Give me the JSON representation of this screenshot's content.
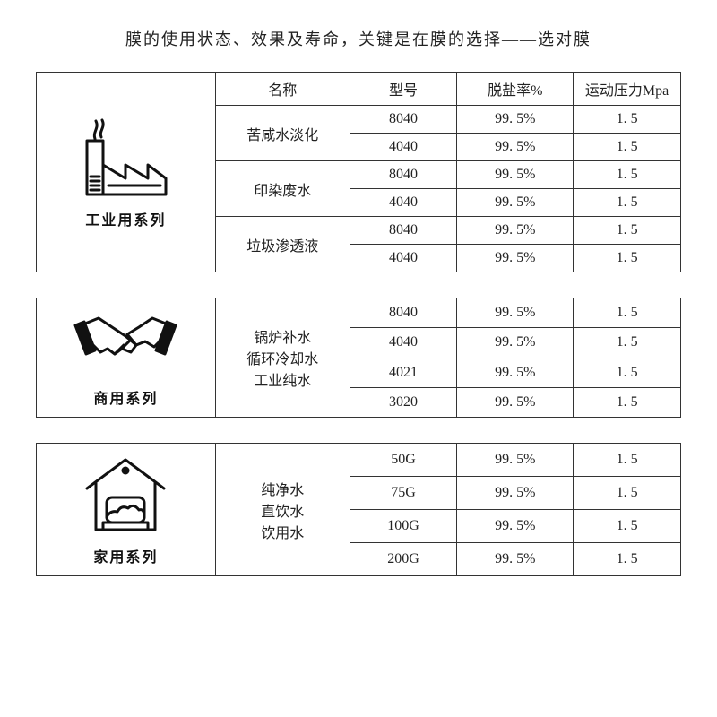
{
  "title": "膜的使用状态、效果及寿命，关键是在膜的选择——选对膜",
  "headers": {
    "name": "名称",
    "model": "型号",
    "rate": "脱盐率%",
    "pressure": "运动压力Mpa"
  },
  "colors": {
    "background": "#ffffff",
    "border": "#333333",
    "text": "#222222",
    "icon_stroke": "#111111"
  },
  "sections": [
    {
      "series_label": "工业用系列",
      "icon": "factory",
      "groups": [
        {
          "name": "苦咸水淡化",
          "rows": [
            {
              "model": "8040",
              "rate": "99. 5%",
              "pressure": "1. 5"
            },
            {
              "model": "4040",
              "rate": "99. 5%",
              "pressure": "1. 5"
            }
          ]
        },
        {
          "name": "印染废水",
          "rows": [
            {
              "model": "8040",
              "rate": "99. 5%",
              "pressure": "1. 5"
            },
            {
              "model": "4040",
              "rate": "99. 5%",
              "pressure": "1. 5"
            }
          ]
        },
        {
          "name": "垃圾渗透液",
          "rows": [
            {
              "model": "8040",
              "rate": "99. 5%",
              "pressure": "1. 5"
            },
            {
              "model": "4040",
              "rate": "99. 5%",
              "pressure": "1. 5"
            }
          ]
        }
      ]
    },
    {
      "series_label": "商用系列",
      "icon": "handshake",
      "groups": [
        {
          "name": "锅炉补水\n循环冷却水\n工业纯水",
          "rows": [
            {
              "model": "8040",
              "rate": "99. 5%",
              "pressure": "1. 5"
            },
            {
              "model": "4040",
              "rate": "99. 5%",
              "pressure": "1. 5"
            },
            {
              "model": "4021",
              "rate": "99. 5%",
              "pressure": "1. 5"
            },
            {
              "model": "3020",
              "rate": "99. 5%",
              "pressure": "1. 5"
            }
          ]
        }
      ]
    },
    {
      "series_label": "家用系列",
      "icon": "house",
      "groups": [
        {
          "name": "纯净水\n直饮水\n饮用水",
          "rows": [
            {
              "model": "50G",
              "rate": "99. 5%",
              "pressure": "1. 5"
            },
            {
              "model": "75G",
              "rate": "99. 5%",
              "pressure": "1. 5"
            },
            {
              "model": "100G",
              "rate": "99. 5%",
              "pressure": "1. 5"
            },
            {
              "model": "200G",
              "rate": "99. 5%",
              "pressure": "1. 5"
            }
          ]
        }
      ]
    }
  ]
}
